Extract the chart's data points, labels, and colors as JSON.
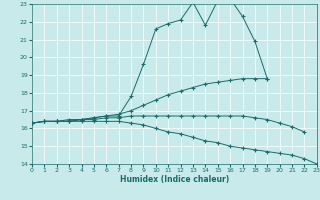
{
  "xlabel": "Humidex (Indice chaleur)",
  "xlim": [
    0,
    23
  ],
  "ylim": [
    14,
    23
  ],
  "yticks": [
    14,
    15,
    16,
    17,
    18,
    19,
    20,
    21,
    22,
    23
  ],
  "xticks": [
    0,
    1,
    2,
    3,
    4,
    5,
    6,
    7,
    8,
    9,
    10,
    11,
    12,
    13,
    14,
    15,
    16,
    17,
    18,
    19,
    20,
    21,
    22,
    23
  ],
  "bg_color": "#c8eaea",
  "line_color": "#1a6b6b",
  "grid_color": "#ffffff",
  "lines": [
    {
      "x": [
        0,
        1,
        2,
        3,
        4,
        5,
        6,
        7,
        8,
        9,
        10,
        11,
        12,
        13,
        14,
        15,
        16,
        17,
        18,
        19
      ],
      "y": [
        16.3,
        16.4,
        16.4,
        16.4,
        16.5,
        16.6,
        16.7,
        16.7,
        17.8,
        19.6,
        21.6,
        21.9,
        22.1,
        23.1,
        21.8,
        23.2,
        23.3,
        22.3,
        20.9,
        18.8
      ]
    },
    {
      "x": [
        0,
        1,
        2,
        3,
        4,
        5,
        6,
        7,
        8,
        9,
        10,
        11,
        12,
        13,
        14,
        15,
        16,
        17,
        18,
        19
      ],
      "y": [
        16.3,
        16.4,
        16.4,
        16.5,
        16.5,
        16.6,
        16.7,
        16.8,
        17.0,
        17.3,
        17.6,
        17.9,
        18.1,
        18.3,
        18.5,
        18.6,
        18.7,
        18.8,
        18.8,
        18.8
      ]
    },
    {
      "x": [
        0,
        1,
        2,
        3,
        4,
        5,
        6,
        7,
        8,
        9,
        10,
        11,
        12,
        13,
        14,
        15,
        16,
        17,
        18,
        19,
        20,
        21,
        22
      ],
      "y": [
        16.3,
        16.4,
        16.4,
        16.4,
        16.5,
        16.5,
        16.6,
        16.6,
        16.7,
        16.7,
        16.7,
        16.7,
        16.7,
        16.7,
        16.7,
        16.7,
        16.7,
        16.7,
        16.6,
        16.5,
        16.3,
        16.1,
        15.8
      ]
    },
    {
      "x": [
        0,
        1,
        2,
        3,
        4,
        5,
        6,
        7,
        8,
        9,
        10,
        11,
        12,
        13,
        14,
        15,
        16,
        17,
        18,
        19,
        20,
        21,
        22,
        23
      ],
      "y": [
        16.3,
        16.4,
        16.4,
        16.4,
        16.4,
        16.4,
        16.4,
        16.4,
        16.3,
        16.2,
        16.0,
        15.8,
        15.7,
        15.5,
        15.3,
        15.2,
        15.0,
        14.9,
        14.8,
        14.7,
        14.6,
        14.5,
        14.3,
        14.0
      ]
    }
  ]
}
